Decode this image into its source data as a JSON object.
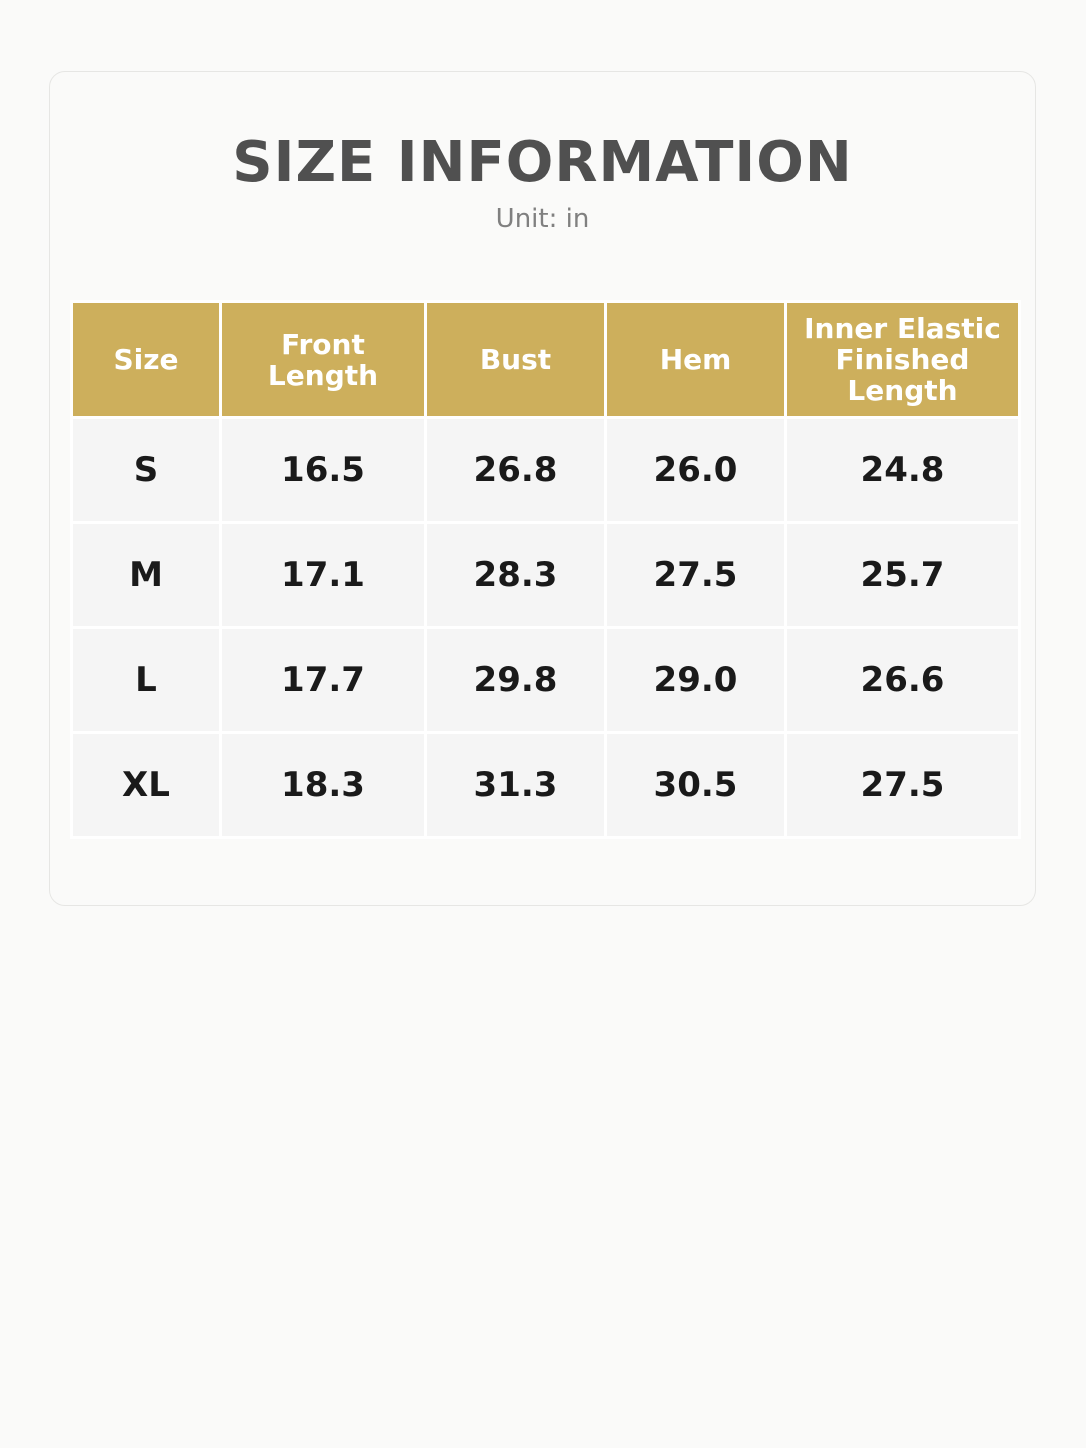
{
  "header": {
    "title": "SIZE INFORMATION",
    "subtitle": "Unit: in"
  },
  "table": {
    "columns": [
      "Size",
      "Front Length",
      "Bust",
      "Hem",
      "Inner Elastic Finished Length"
    ],
    "rows": [
      [
        "S",
        "16.5",
        "26.8",
        "26.0",
        "24.8"
      ],
      [
        "M",
        "17.1",
        "28.3",
        "27.5",
        "25.7"
      ],
      [
        "L",
        "17.7",
        "29.8",
        "29.0",
        "26.6"
      ],
      [
        "XL",
        "18.3",
        "31.3",
        "30.5",
        "27.5"
      ]
    ]
  }
}
